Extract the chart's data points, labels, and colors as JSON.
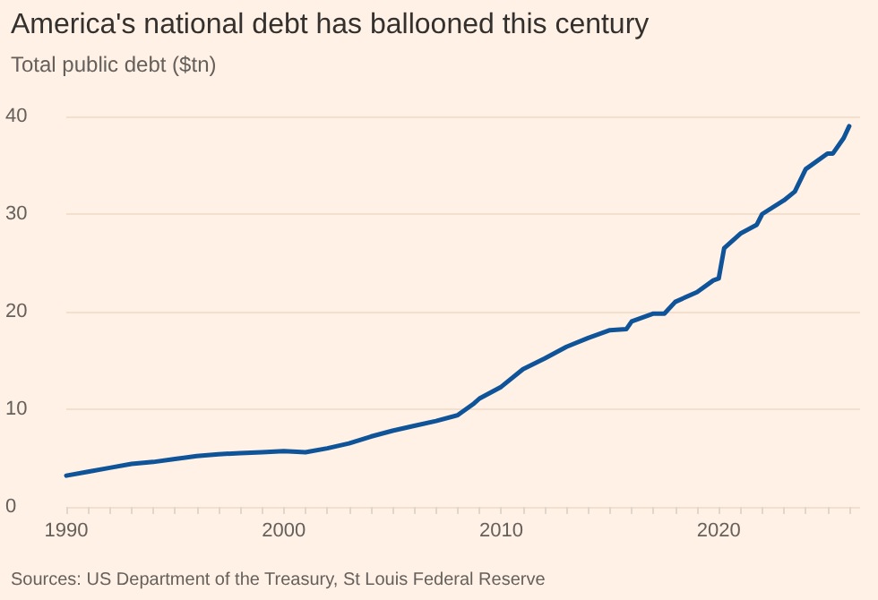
{
  "chart_data": {
    "type": "line",
    "title": "America's national debt has ballooned this century",
    "subtitle": "Total public debt ($tn)",
    "x": [
      1990,
      1991,
      1992,
      1993,
      1994,
      1995,
      1996,
      1997,
      1998,
      1999,
      2000,
      2001,
      2002,
      2003,
      2004,
      2005,
      2006,
      2007,
      2008,
      2008.75,
      2009,
      2010,
      2011,
      2012,
      2013,
      2014,
      2015,
      2015.75,
      2016,
      2017,
      2017.5,
      2018,
      2019,
      2019.75,
      2020,
      2020.25,
      2021,
      2021.75,
      2022,
      2023,
      2023.5,
      2024,
      2025,
      2025.25,
      2025.75,
      2026
    ],
    "series": [
      {
        "color": "#0f5499",
        "values": [
          3.2,
          3.6,
          4.0,
          4.4,
          4.6,
          4.9,
          5.2,
          5.4,
          5.5,
          5.6,
          5.7,
          5.6,
          6.0,
          6.5,
          7.2,
          7.8,
          8.3,
          8.8,
          9.4,
          10.6,
          11.1,
          12.3,
          14.1,
          15.2,
          16.4,
          17.3,
          18.1,
          18.2,
          19.0,
          19.8,
          19.8,
          21.0,
          22.0,
          23.2,
          23.4,
          26.5,
          28.0,
          28.9,
          30.0,
          31.4,
          32.3,
          34.6,
          36.2,
          36.2,
          37.8,
          39.0
        ]
      }
    ],
    "xlim": [
      1990,
      2026.5
    ],
    "xticks": [
      1990,
      {
        "value": 1991,
        "label": null
      },
      {
        "value": 1992,
        "label": null
      },
      {
        "value": 1993,
        "label": null
      },
      {
        "value": 1994,
        "label": null
      },
      {
        "value": 1995,
        "label": null
      },
      {
        "value": 1996,
        "label": null
      },
      {
        "value": 1997,
        "label": null
      },
      {
        "value": 1998,
        "label": null
      },
      {
        "value": 1999,
        "label": null
      },
      2000,
      {
        "value": 2001,
        "label": null
      },
      {
        "value": 2002,
        "label": null
      },
      {
        "value": 2003,
        "label": null
      },
      {
        "value": 2004,
        "label": null
      },
      {
        "value": 2005,
        "label": null
      },
      {
        "value": 2006,
        "label": null
      },
      {
        "value": 2007,
        "label": null
      },
      {
        "value": 2008,
        "label": null
      },
      {
        "value": 2009,
        "label": null
      },
      2010,
      {
        "value": 2011,
        "label": null
      },
      {
        "value": 2012,
        "label": null
      },
      {
        "value": 2013,
        "label": null
      },
      {
        "value": 2014,
        "label": null
      },
      {
        "value": 2015,
        "label": null
      },
      {
        "value": 2016,
        "label": null
      },
      {
        "value": 2017,
        "label": null
      },
      {
        "value": 2018,
        "label": null
      },
      {
        "value": 2019,
        "label": null
      },
      2020,
      {
        "value": 2021,
        "label": null
      },
      {
        "value": 2022,
        "label": null
      },
      {
        "value": 2023,
        "label": null
      },
      {
        "value": 2024,
        "label": null
      },
      {
        "value": 2025,
        "label": null
      },
      {
        "value": 2026,
        "label": null
      }
    ],
    "ylim": [
      0,
      40
    ],
    "yticks": [
      0,
      10,
      20,
      30,
      40
    ],
    "grid": "y",
    "marker": "none",
    "line_style": "solid",
    "annotations": [
      "Sources: US Department of the Treasury, St Louis Federal Reserve"
    ]
  }
}
